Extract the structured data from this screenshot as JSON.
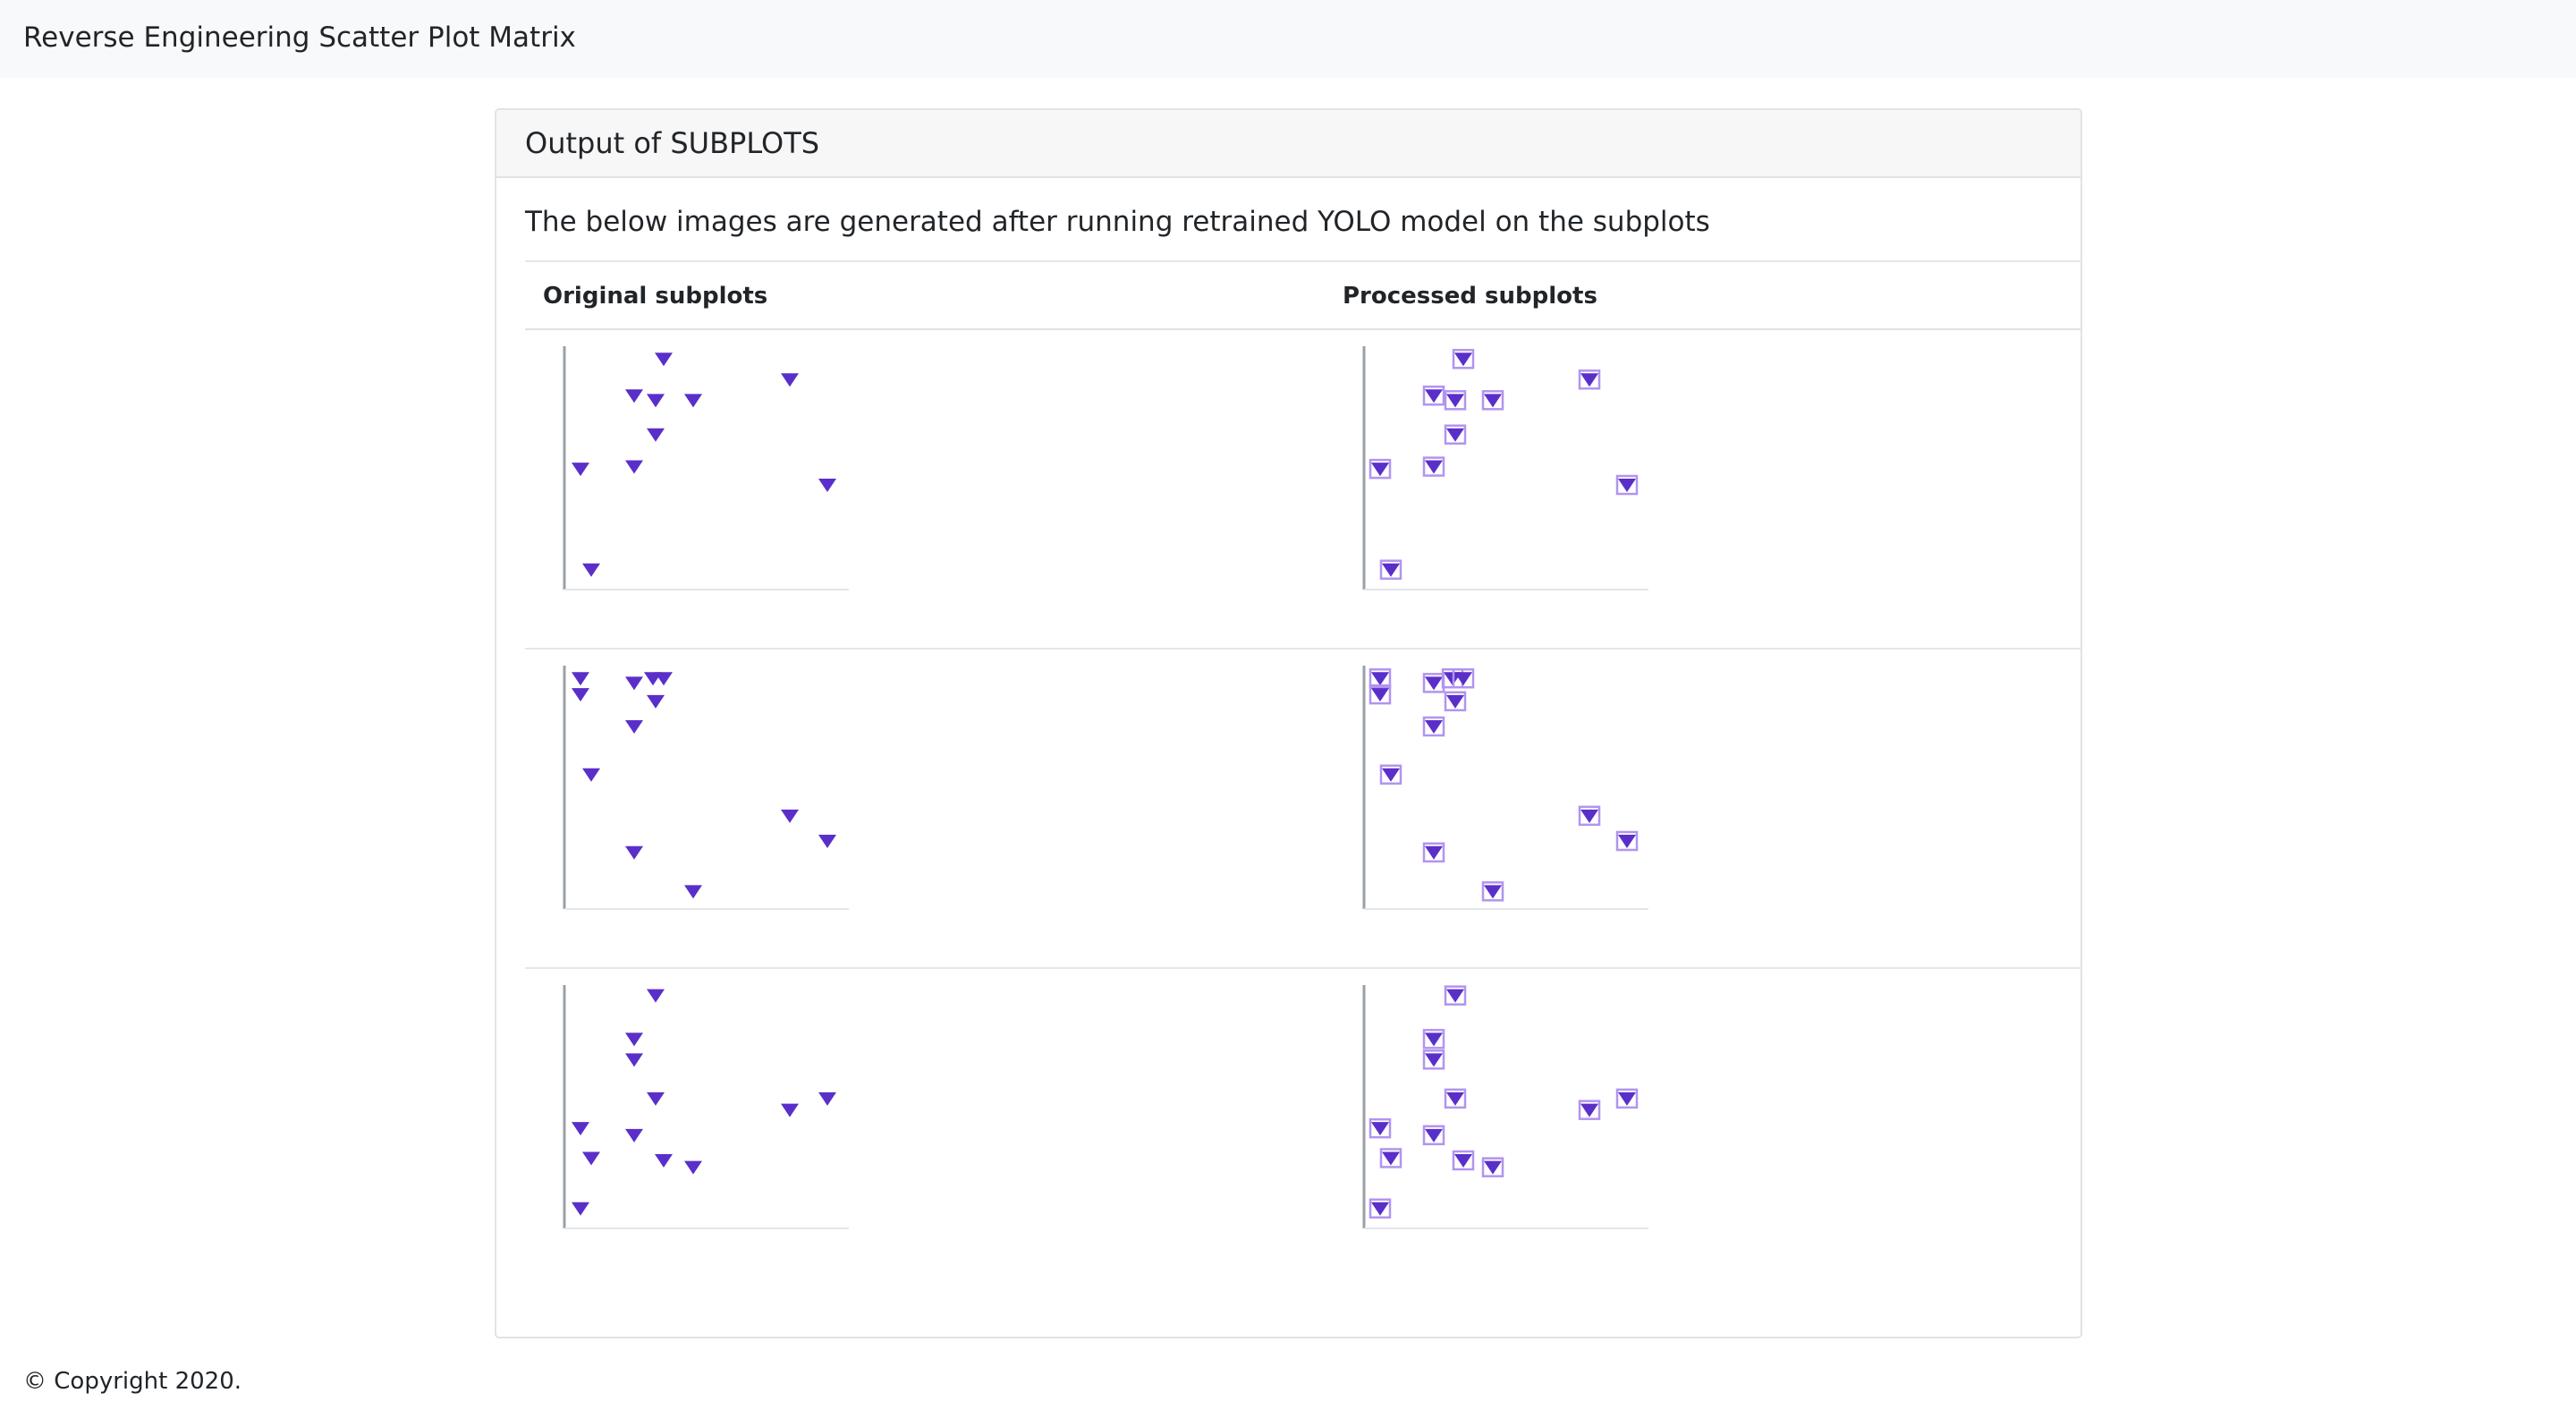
{
  "header": {
    "title": "Reverse Engineering Scatter Plot Matrix"
  },
  "card": {
    "title": "Output of SUBPLOTS",
    "intro": "The below images are generated after running retrained YOLO model on the subplots",
    "columns": [
      "Original subplots",
      "Processed subplots"
    ]
  },
  "colors": {
    "marker": "#5a2fc9",
    "box": "#b294f0",
    "axis": "#9aa0a6"
  },
  "subplots": [
    {
      "points": [
        [
          0.35,
          0.04
        ],
        [
          0.24,
          0.2
        ],
        [
          0.32,
          0.22
        ],
        [
          0.46,
          0.22
        ],
        [
          0.82,
          0.13
        ],
        [
          0.32,
          0.37
        ],
        [
          0.04,
          0.52
        ],
        [
          0.24,
          0.51
        ],
        [
          0.96,
          0.59
        ],
        [
          0.08,
          0.96
        ]
      ]
    },
    {
      "points": [
        [
          0.04,
          0.04
        ],
        [
          0.04,
          0.11
        ],
        [
          0.24,
          0.06
        ],
        [
          0.31,
          0.04
        ],
        [
          0.35,
          0.04
        ],
        [
          0.32,
          0.14
        ],
        [
          0.24,
          0.25
        ],
        [
          0.08,
          0.46
        ],
        [
          0.82,
          0.64
        ],
        [
          0.96,
          0.75
        ],
        [
          0.24,
          0.8
        ],
        [
          0.46,
          0.97
        ]
      ]
    },
    {
      "points": [
        [
          0.32,
          0.03
        ],
        [
          0.24,
          0.22
        ],
        [
          0.24,
          0.31
        ],
        [
          0.32,
          0.48
        ],
        [
          0.82,
          0.53
        ],
        [
          0.96,
          0.48
        ],
        [
          0.04,
          0.61
        ],
        [
          0.24,
          0.64
        ],
        [
          0.08,
          0.74
        ],
        [
          0.35,
          0.75
        ],
        [
          0.46,
          0.78
        ],
        [
          0.04,
          0.96
        ]
      ]
    }
  ],
  "footer": {
    "copyright": "© Copyright 2020."
  }
}
